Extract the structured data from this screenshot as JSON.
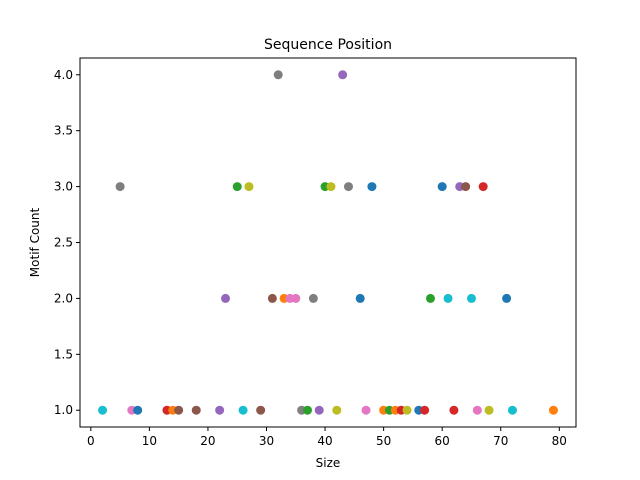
{
  "chart_data": {
    "type": "scatter",
    "title": "Sequence Position",
    "xlabel": "Size",
    "ylabel": "Motif Count",
    "xlim": [
      -1.85,
      82.85
    ],
    "ylim": [
      0.85,
      4.15
    ],
    "xticks": [
      "0",
      "10",
      "20",
      "30",
      "40",
      "50",
      "60",
      "70",
      "80"
    ],
    "yticks": [
      "1.0",
      "1.5",
      "2.0",
      "2.5",
      "3.0",
      "3.5",
      "4.0"
    ],
    "grid": false,
    "palette": [
      "#1f77b4",
      "#ff7f0e",
      "#2ca02c",
      "#d62728",
      "#9467bd",
      "#8c564b",
      "#e377c2",
      "#7f7f7f",
      "#bcbd22",
      "#17becf"
    ],
    "points": [
      {
        "x": 2,
        "y": 1,
        "color": "#17becf"
      },
      {
        "x": 5,
        "y": 3,
        "color": "#7f7f7f"
      },
      {
        "x": 7,
        "y": 1,
        "color": "#e377c2"
      },
      {
        "x": 8,
        "y": 1,
        "color": "#1f77b4"
      },
      {
        "x": 13,
        "y": 1,
        "color": "#d62728"
      },
      {
        "x": 14,
        "y": 1,
        "color": "#ff7f0e"
      },
      {
        "x": 15,
        "y": 1,
        "color": "#8c564b"
      },
      {
        "x": 18,
        "y": 1,
        "color": "#8c564b"
      },
      {
        "x": 22,
        "y": 1,
        "color": "#9467bd"
      },
      {
        "x": 23,
        "y": 2,
        "color": "#9467bd"
      },
      {
        "x": 25,
        "y": 3,
        "color": "#2ca02c"
      },
      {
        "x": 26,
        "y": 1,
        "color": "#17becf"
      },
      {
        "x": 27,
        "y": 3,
        "color": "#bcbd22"
      },
      {
        "x": 29,
        "y": 1,
        "color": "#8c564b"
      },
      {
        "x": 31,
        "y": 2,
        "color": "#8c564b"
      },
      {
        "x": 32,
        "y": 4,
        "color": "#7f7f7f"
      },
      {
        "x": 33,
        "y": 2,
        "color": "#ff7f0e"
      },
      {
        "x": 34,
        "y": 2,
        "color": "#e377c2"
      },
      {
        "x": 35,
        "y": 2,
        "color": "#e377c2"
      },
      {
        "x": 36,
        "y": 1,
        "color": "#7f7f7f"
      },
      {
        "x": 37,
        "y": 1,
        "color": "#2ca02c"
      },
      {
        "x": 38,
        "y": 2,
        "color": "#7f7f7f"
      },
      {
        "x": 39,
        "y": 1,
        "color": "#9467bd"
      },
      {
        "x": 40,
        "y": 3,
        "color": "#2ca02c"
      },
      {
        "x": 41,
        "y": 3,
        "color": "#bcbd22"
      },
      {
        "x": 42,
        "y": 1,
        "color": "#bcbd22"
      },
      {
        "x": 43,
        "y": 4,
        "color": "#9467bd"
      },
      {
        "x": 44,
        "y": 3,
        "color": "#7f7f7f"
      },
      {
        "x": 46,
        "y": 2,
        "color": "#1f77b4"
      },
      {
        "x": 47,
        "y": 1,
        "color": "#e377c2"
      },
      {
        "x": 48,
        "y": 3,
        "color": "#1f77b4"
      },
      {
        "x": 50,
        "y": 1,
        "color": "#ff7f0e"
      },
      {
        "x": 51,
        "y": 1,
        "color": "#2ca02c"
      },
      {
        "x": 52,
        "y": 1,
        "color": "#ff7f0e"
      },
      {
        "x": 53,
        "y": 1,
        "color": "#d62728"
      },
      {
        "x": 54,
        "y": 1,
        "color": "#bcbd22"
      },
      {
        "x": 56,
        "y": 1,
        "color": "#1f77b4"
      },
      {
        "x": 57,
        "y": 1,
        "color": "#d62728"
      },
      {
        "x": 58,
        "y": 2,
        "color": "#2ca02c"
      },
      {
        "x": 60,
        "y": 3,
        "color": "#1f77b4"
      },
      {
        "x": 61,
        "y": 2,
        "color": "#17becf"
      },
      {
        "x": 62,
        "y": 1,
        "color": "#d62728"
      },
      {
        "x": 63,
        "y": 3,
        "color": "#9467bd"
      },
      {
        "x": 64,
        "y": 3,
        "color": "#8c564b"
      },
      {
        "x": 65,
        "y": 2,
        "color": "#17becf"
      },
      {
        "x": 66,
        "y": 1,
        "color": "#e377c2"
      },
      {
        "x": 67,
        "y": 3,
        "color": "#d62728"
      },
      {
        "x": 68,
        "y": 1,
        "color": "#bcbd22"
      },
      {
        "x": 71,
        "y": 2,
        "color": "#1f77b4"
      },
      {
        "x": 72,
        "y": 1,
        "color": "#17becf"
      },
      {
        "x": 79,
        "y": 1,
        "color": "#ff7f0e"
      }
    ]
  }
}
